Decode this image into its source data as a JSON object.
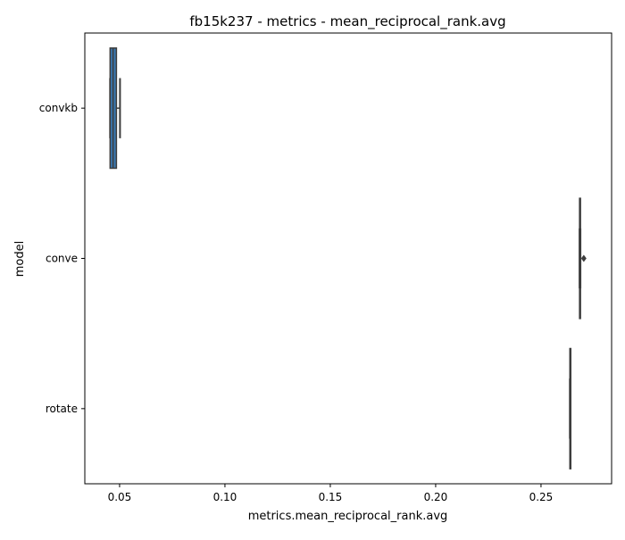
{
  "chart_data": {
    "type": "box",
    "orientation": "horizontal",
    "title": "fb15k237 - metrics - mean_reciprocal_rank.avg",
    "xlabel": "metrics.mean_reciprocal_rank.avg",
    "ylabel": "model",
    "xlim": [
      0.0335,
      0.2835
    ],
    "x_ticks": [
      "0.05",
      "0.10",
      "0.15",
      "0.20",
      "0.25"
    ],
    "x_tick_values": [
      0.05,
      0.1,
      0.15,
      0.2,
      0.25
    ],
    "categories": [
      "convkb",
      "conve",
      "rotate"
    ],
    "grid": false,
    "series": [
      {
        "category": "convkb",
        "whisker_low": 0.0455,
        "q1": 0.0455,
        "median": 0.0469,
        "q3": 0.0485,
        "whisker_high": 0.0502,
        "outliers": [],
        "color": "#3a76ae"
      },
      {
        "category": "conve",
        "whisker_low": 0.2683,
        "q1": 0.2683,
        "median": 0.2685,
        "q3": 0.2687,
        "whisker_high": 0.2687,
        "outliers": [
          0.2703
        ],
        "color": "#e1812c"
      },
      {
        "category": "rotate",
        "whisker_low": 0.2637,
        "q1": 0.2637,
        "median": 0.2638,
        "q3": 0.2639,
        "whisker_high": 0.2639,
        "outliers": [],
        "color": "#3a923a"
      }
    ],
    "line_color": "#3d3d3d"
  }
}
